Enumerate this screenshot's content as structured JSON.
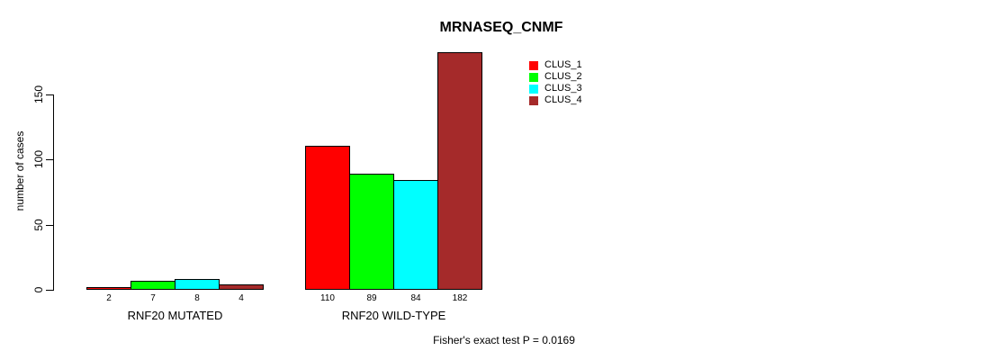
{
  "chart_data": {
    "type": "bar",
    "title": "MRNASEQ_CNMF",
    "ylabel": "number of cases",
    "xlabel": "",
    "categories": [
      "RNF20 MUTATED",
      "RNF20 WILD-TYPE"
    ],
    "series": [
      {
        "name": "CLUS_1",
        "color": "#ff0000",
        "values": [
          2,
          110
        ]
      },
      {
        "name": "CLUS_2",
        "color": "#00ff00",
        "values": [
          7,
          89
        ]
      },
      {
        "name": "CLUS_3",
        "color": "#00ffff",
        "values": [
          8,
          84
        ]
      },
      {
        "name": "CLUS_4",
        "color": "#a52a2a",
        "values": [
          4,
          182
        ]
      }
    ],
    "yticks": [
      0,
      50,
      100,
      150
    ],
    "ylim": [
      0,
      185
    ],
    "grid": false,
    "bar_value_labels_shown": true,
    "legend_position": "top-right",
    "annotation": "Fisher's exact test P = 0.0169"
  },
  "footer": {
    "note": "Fisher's exact test P = 0.0169"
  },
  "colors": {
    "background": "#ffffff",
    "axis": "#000000",
    "text": "#000000",
    "bar_border": "#000000"
  }
}
